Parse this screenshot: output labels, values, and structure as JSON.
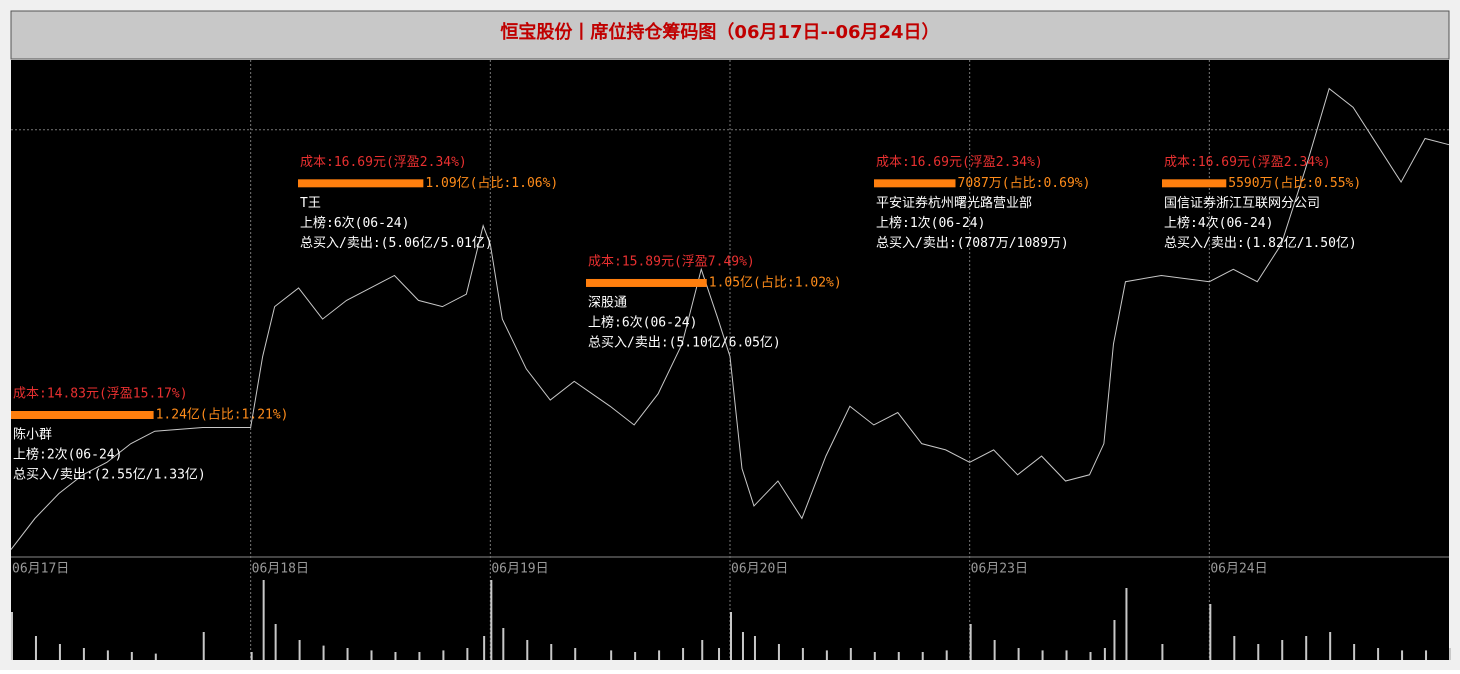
{
  "chart_data": {
    "type": "line",
    "title": "恒宝股份丨席位持仓筹码图（06月17日--06月24日）",
    "days": [
      "06月17日",
      "06月18日",
      "06月19日",
      "06月20日",
      "06月23日",
      "06月24日"
    ],
    "xlim": [
      0,
      6
    ],
    "ylim": [
      13.69,
      17.68
    ],
    "ygrid": [
      17.12
    ],
    "vlim": [
      0,
      100
    ],
    "color": "#c8c8c8",
    "x": [
      0,
      0.1,
      0.2,
      0.3,
      0.4,
      0.5,
      0.6,
      0.8,
      1.0,
      1.05,
      1.1,
      1.2,
      1.3,
      1.4,
      1.5,
      1.6,
      1.7,
      1.8,
      1.9,
      1.97,
      2.0,
      2.05,
      2.15,
      2.25,
      2.35,
      2.5,
      2.6,
      2.7,
      2.8,
      2.88,
      2.95,
      3.0,
      3.05,
      3.1,
      3.2,
      3.3,
      3.4,
      3.5,
      3.6,
      3.7,
      3.8,
      3.9,
      4.0,
      4.1,
      4.2,
      4.3,
      4.4,
      4.5,
      4.56,
      4.6,
      4.65,
      4.8,
      5.0,
      5.1,
      5.2,
      5.3,
      5.4,
      5.5,
      5.6,
      5.7,
      5.8,
      5.9,
      6.0
    ],
    "values": [
      13.75,
      14.0,
      14.2,
      14.35,
      14.45,
      14.6,
      14.7,
      14.73,
      14.73,
      15.3,
      15.7,
      15.85,
      15.6,
      15.75,
      15.85,
      15.95,
      15.75,
      15.7,
      15.8,
      16.35,
      16.2,
      15.6,
      15.2,
      14.95,
      15.1,
      14.9,
      14.75,
      15.0,
      15.4,
      16.0,
      15.6,
      15.3,
      14.4,
      14.1,
      14.3,
      14.0,
      14.5,
      14.9,
      14.75,
      14.85,
      14.6,
      14.55,
      14.45,
      14.55,
      14.35,
      14.5,
      14.3,
      14.35,
      14.6,
      15.4,
      15.9,
      15.95,
      15.9,
      16.0,
      15.9,
      16.2,
      16.8,
      17.45,
      17.3,
      17.0,
      16.7,
      17.05,
      17.0
    ],
    "volume": [
      60,
      30,
      20,
      15,
      12,
      10,
      8,
      35,
      10,
      100,
      45,
      25,
      18,
      15,
      12,
      10,
      10,
      12,
      15,
      30,
      100,
      40,
      25,
      20,
      15,
      12,
      10,
      12,
      15,
      25,
      15,
      60,
      35,
      30,
      20,
      15,
      12,
      15,
      10,
      10,
      10,
      12,
      45,
      25,
      15,
      12,
      12,
      10,
      15,
      50,
      90,
      20,
      70,
      30,
      20,
      25,
      30,
      35,
      20,
      15,
      12,
      12,
      15
    ],
    "seats": [
      {
        "cost": 14.83,
        "cost_label": "成本:14.83元(浮盈15.17%)",
        "amount": 1.24,
        "amount_label": "1.24亿(占比:1.21%)",
        "name": "陈小群",
        "listing": "上榜:2次(06-24)",
        "totals": "总买入/卖出:(2.55亿/1.33亿)"
      },
      {
        "cost": 16.69,
        "cost_label": "成本:16.69元(浮盈2.34%)",
        "amount": 1.09,
        "amount_label": "1.09亿(占比:1.06%)",
        "name": "T王",
        "listing": "上榜:6次(06-24)",
        "totals": "总买入/卖出:(5.06亿/5.01亿)"
      },
      {
        "cost": 15.89,
        "cost_label": "成本:15.89元(浮盈7.49%)",
        "amount": 1.05,
        "amount_label": "1.05亿(占比:1.02%)",
        "name": "深股通",
        "listing": "上榜:6次(06-24)",
        "totals": "总买入/卖出:(5.10亿/6.05亿)"
      },
      {
        "cost": 16.69,
        "cost_label": "成本:16.69元(浮盈2.34%)",
        "amount": 0.7087,
        "amount_label": "7087万(占比:0.69%)",
        "name": "平安证券杭州曙光路营业部",
        "listing": "上榜:1次(06-24)",
        "totals": "总买入/卖出:(7087万/1089万)"
      },
      {
        "cost": 16.69,
        "cost_label": "成本:16.69元(浮盈2.34%)",
        "amount": 0.559,
        "amount_label": "5590万(占比:0.55%)",
        "name": "国信证券浙江互联网分公司",
        "listing": "上榜:4次(06-24)",
        "totals": "总买入/卖出:(1.82亿/1.50亿)"
      }
    ]
  }
}
